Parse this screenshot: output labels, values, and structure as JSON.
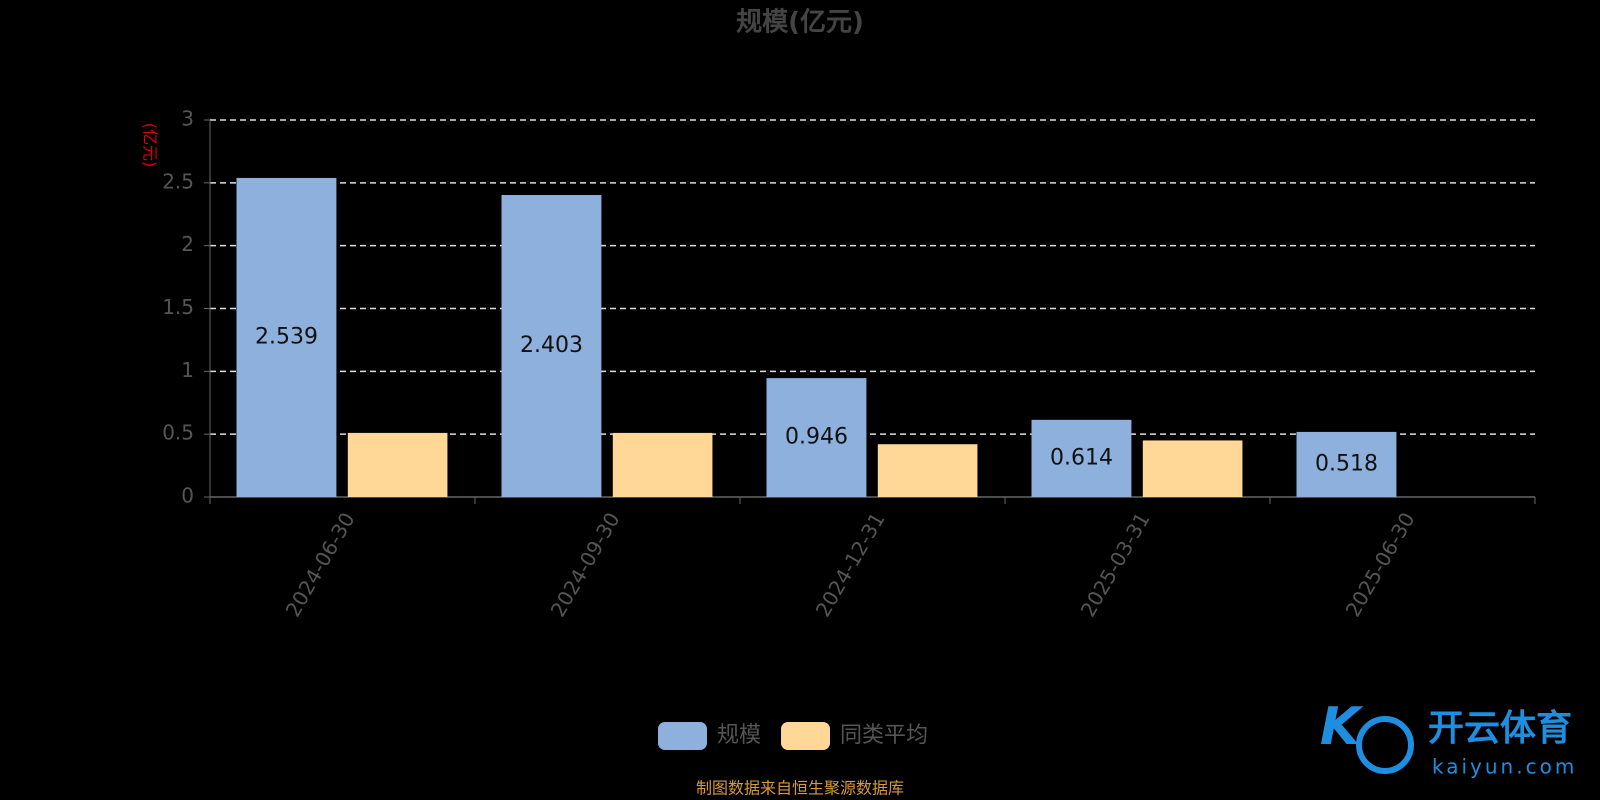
{
  "chart_data": {
    "type": "bar",
    "title": "规模(亿元)",
    "y_label": "(亿元)",
    "categories": [
      "2024-06-30",
      "2024-09-30",
      "2024-12-31",
      "2025-03-31",
      "2025-06-30"
    ],
    "series": [
      {
        "name": "规模",
        "color": "#8eb0dc",
        "values": [
          2.539,
          2.403,
          0.946,
          0.614,
          0.518
        ]
      },
      {
        "name": "同类平均",
        "color": "#ffd897",
        "values": [
          0.51,
          0.51,
          0.42,
          0.45,
          null
        ]
      }
    ],
    "ylim": [
      0,
      3
    ],
    "yticks": [
      0,
      0.5,
      1,
      1.5,
      2,
      2.5,
      3
    ],
    "grid": true,
    "source": "制图数据来自恒生聚源数据库",
    "watermark": {
      "name": "开云体育",
      "site": "kaiyun.com"
    }
  }
}
